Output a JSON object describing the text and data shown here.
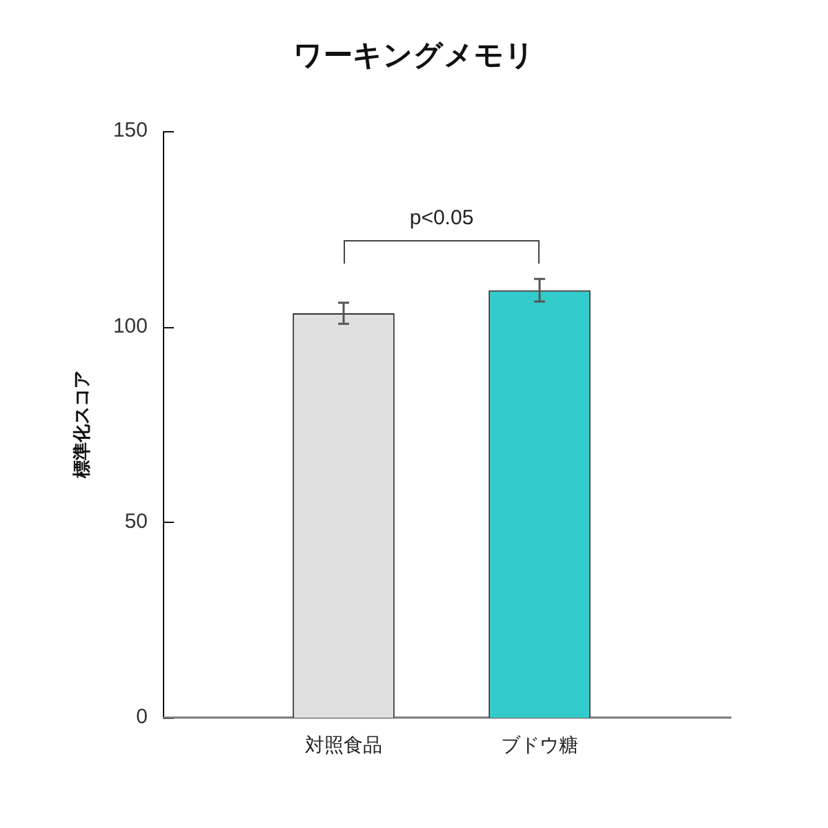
{
  "chart_data": {
    "type": "bar",
    "title": "ワーキングメモリ",
    "ylabel": "標準化スコア",
    "categories": [
      "対照食品",
      "ブドウ糖"
    ],
    "values": [
      103.4,
      109.3
    ],
    "errors": [
      2.7,
      2.9
    ],
    "colors": [
      "#e0e0e0",
      "#33cccc"
    ],
    "ylim": [
      0,
      150
    ],
    "yticks": [
      0,
      50,
      100,
      150
    ],
    "annotations": [
      "p<0.05"
    ]
  }
}
